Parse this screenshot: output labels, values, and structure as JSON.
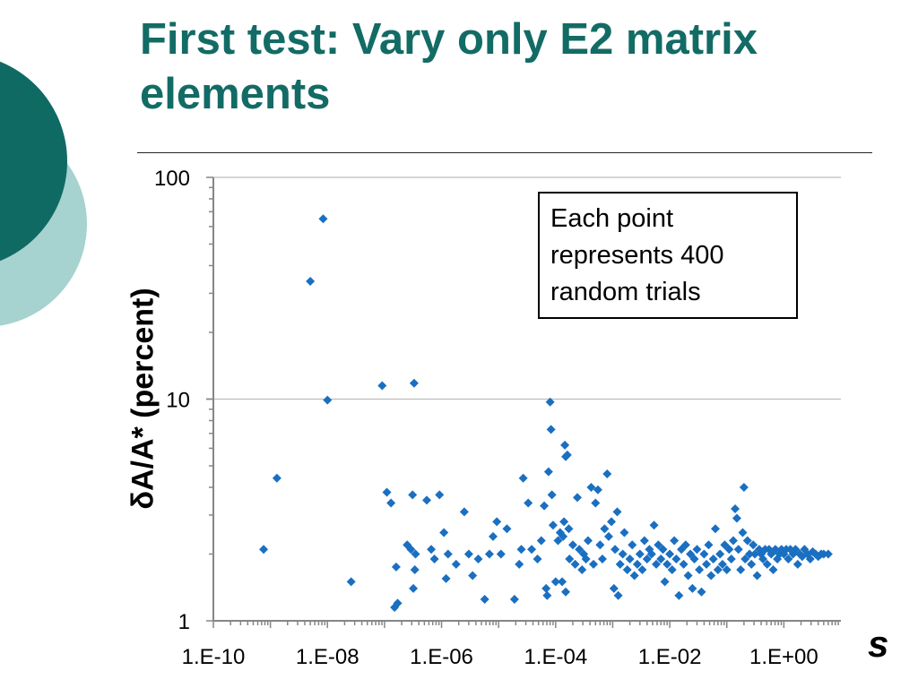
{
  "slide": {
    "title": "First test: Vary only E2 matrix elements",
    "colors": {
      "title": "#136b65",
      "circle_dark": "#0f6a64",
      "circle_light": "#a6d2d0",
      "marker": "#1a6fc1"
    }
  },
  "note": {
    "lines": [
      "Each point",
      "represents 400",
      "random trials"
    ]
  },
  "chart_data": {
    "type": "scatter",
    "title": "",
    "xlabel": "s",
    "ylabel": "δA/A* (percent)",
    "x_scale": "log",
    "y_scale": "log",
    "xlim": [
      1e-10,
      10.0
    ],
    "ylim": [
      1,
      100
    ],
    "x_ticks": [
      1e-10,
      1e-08,
      1e-06,
      0.0001,
      0.01,
      1
    ],
    "x_tick_labels": [
      "1.E-10",
      "1.E-08",
      "1.E-06",
      "1.E-04",
      "1.E-02",
      "1.E+00"
    ],
    "y_ticks": [
      1,
      10,
      100
    ],
    "y_tick_labels": [
      "1",
      "10",
      "100"
    ],
    "grid": "horizontal major",
    "marker": "diamond",
    "series": [
      {
        "points": [
          [
            7.6e-10,
            2.1
          ],
          [
            1.3e-09,
            4.4
          ],
          [
            5e-09,
            34
          ],
          [
            8.4e-09,
            65
          ],
          [
            1e-08,
            9.9
          ],
          [
            2.6e-08,
            1.5
          ],
          [
            9.1e-08,
            11.5
          ],
          [
            1.1e-07,
            3.8
          ],
          [
            1.3e-07,
            3.4
          ],
          [
            1.5e-07,
            1.15
          ],
          [
            1.6e-07,
            1.75
          ],
          [
            1.7e-07,
            1.2
          ],
          [
            2.5e-07,
            2.2
          ],
          [
            2.9e-07,
            2.1
          ],
          [
            3.1e-07,
            3.7
          ],
          [
            3.3e-07,
            11.8
          ],
          [
            3.4e-07,
            1.7
          ],
          [
            3.5e-07,
            2.0
          ],
          [
            3.2e-07,
            1.4
          ],
          [
            5.5e-07,
            3.5
          ],
          [
            6.6e-07,
            2.1
          ],
          [
            7.5e-07,
            1.9
          ],
          [
            9.2e-07,
            3.7
          ],
          [
            1.1e-06,
            2.5
          ],
          [
            1.2e-06,
            1.55
          ],
          [
            1.3e-06,
            2.0
          ],
          [
            1.8e-06,
            1.8
          ],
          [
            2.5e-06,
            3.1
          ],
          [
            3e-06,
            2.0
          ],
          [
            3.5e-06,
            1.6
          ],
          [
            4.4e-06,
            1.9
          ],
          [
            5.7e-06,
            1.25
          ],
          [
            6.9e-06,
            2.0
          ],
          [
            8e-06,
            2.4
          ],
          [
            9.3e-06,
            2.8
          ],
          [
            1.1e-05,
            2.0
          ],
          [
            1.4e-05,
            2.6
          ],
          [
            1.9e-05,
            1.25
          ],
          [
            2.3e-05,
            1.8
          ],
          [
            2.5e-05,
            2.1
          ],
          [
            2.7e-05,
            4.4
          ],
          [
            3.3e-05,
            3.4
          ],
          [
            3.8e-05,
            2.1
          ],
          [
            4.8e-05,
            1.9
          ],
          [
            5.6e-05,
            2.3
          ],
          [
            6.3e-05,
            3.3
          ],
          [
            6.8e-05,
            1.4
          ],
          [
            7.1e-05,
            1.3
          ],
          [
            7.5e-05,
            4.7
          ],
          [
            8e-05,
            9.7
          ],
          [
            8.3e-05,
            7.3
          ],
          [
            8.6e-05,
            3.7
          ],
          [
            9e-05,
            2.7
          ],
          [
            0.0001,
            1.5
          ],
          [
            0.00011,
            2.3
          ],
          [
            0.00012,
            2.5
          ],
          [
            0.00013,
            1.5
          ],
          [
            0.000135,
            2.4
          ],
          [
            0.000145,
            6.2
          ],
          [
            0.00015,
            5.5
          ],
          [
            0.00016,
            5.6
          ],
          [
            0.00017,
            2.6
          ],
          [
            0.00015,
            1.35
          ],
          [
            0.00014,
            2.8
          ],
          [
            0.000175,
            1.9
          ],
          [
            0.0002,
            2.2
          ],
          [
            0.00022,
            1.8
          ],
          [
            0.00024,
            3.6
          ],
          [
            0.00026,
            2.1
          ],
          [
            0.00029,
            1.7
          ],
          [
            0.00031,
            2.0
          ],
          [
            0.00034,
            1.9
          ],
          [
            0.00037,
            2.3
          ],
          [
            0.00042,
            4.0
          ],
          [
            0.00046,
            1.8
          ],
          [
            0.0005,
            3.4
          ],
          [
            0.00055,
            3.9
          ],
          [
            0.0006,
            2.2
          ],
          [
            0.00066,
            1.9
          ],
          [
            0.00072,
            2.6
          ],
          [
            0.0008,
            4.6
          ],
          [
            0.00085,
            2.4
          ],
          [
            0.00095,
            2.8
          ],
          [
            0.00105,
            1.4
          ],
          [
            0.0011,
            2.1
          ],
          [
            0.0012,
            3.1
          ],
          [
            0.00125,
            1.3
          ],
          [
            0.00135,
            1.8
          ],
          [
            0.0015,
            2.0
          ],
          [
            0.0016,
            2.5
          ],
          [
            0.0018,
            1.7
          ],
          [
            0.002,
            1.9
          ],
          [
            0.0022,
            2.2
          ],
          [
            0.0024,
            1.6
          ],
          [
            0.0027,
            1.8
          ],
          [
            0.003,
            2.0
          ],
          [
            0.0033,
            1.7
          ],
          [
            0.0036,
            2.3
          ],
          [
            0.004,
            1.9
          ],
          [
            0.0044,
            2.1
          ],
          [
            0.0048,
            2.0
          ],
          [
            0.0053,
            2.7
          ],
          [
            0.0058,
            1.8
          ],
          [
            0.0063,
            2.2
          ],
          [
            0.007,
            1.9
          ],
          [
            0.0076,
            2.1
          ],
          [
            0.0082,
            1.5
          ],
          [
            0.009,
            1.8
          ],
          [
            0.01,
            2.0
          ],
          [
            0.011,
            1.7
          ],
          [
            0.012,
            2.3
          ],
          [
            0.013,
            1.9
          ],
          [
            0.0145,
            1.3
          ],
          [
            0.016,
            2.1
          ],
          [
            0.0175,
            1.8
          ],
          [
            0.019,
            2.2
          ],
          [
            0.021,
            1.6
          ],
          [
            0.023,
            2.0
          ],
          [
            0.025,
            1.4
          ],
          [
            0.027,
            1.9
          ],
          [
            0.03,
            2.1
          ],
          [
            0.033,
            1.7
          ],
          [
            0.036,
            1.35
          ],
          [
            0.04,
            2.0
          ],
          [
            0.044,
            1.8
          ],
          [
            0.048,
            2.2
          ],
          [
            0.053,
            1.6
          ],
          [
            0.058,
            1.9
          ],
          [
            0.063,
            2.6
          ],
          [
            0.07,
            1.7
          ],
          [
            0.076,
            2.0
          ],
          [
            0.084,
            1.8
          ],
          [
            0.092,
            2.2
          ],
          [
            0.1,
            1.7
          ],
          [
            0.11,
            2.1
          ],
          [
            0.12,
            1.9
          ],
          [
            0.13,
            2.3
          ],
          [
            0.14,
            3.2
          ],
          [
            0.15,
            2.9
          ],
          [
            0.16,
            2.1
          ],
          [
            0.175,
            1.7
          ],
          [
            0.19,
            2.5
          ],
          [
            0.2,
            4.0
          ],
          [
            0.21,
            1.9
          ],
          [
            0.23,
            2.3
          ],
          [
            0.25,
            2.0
          ],
          [
            0.27,
            1.8
          ],
          [
            0.29,
            2.2
          ],
          [
            0.31,
            2.0
          ],
          [
            0.34,
            1.6
          ],
          [
            0.37,
            2.1
          ],
          [
            0.4,
            2.0
          ],
          [
            0.43,
            1.9
          ],
          [
            0.47,
            2.1
          ],
          [
            0.51,
            1.8
          ],
          [
            0.55,
            2.1
          ],
          [
            0.6,
            2.0
          ],
          [
            0.65,
            1.7
          ],
          [
            0.71,
            2.1
          ],
          [
            0.77,
            1.9
          ],
          [
            0.84,
            2.0
          ],
          [
            0.91,
            2.1
          ],
          [
            1.0,
            2.0
          ],
          [
            1.1,
            2.1
          ],
          [
            1.2,
            1.9
          ],
          [
            1.3,
            2.1
          ],
          [
            1.45,
            2.0
          ],
          [
            1.6,
            2.1
          ],
          [
            1.75,
            1.8
          ],
          [
            1.9,
            2.0
          ],
          [
            2.1,
            1.95
          ],
          [
            2.3,
            2.1
          ],
          [
            2.6,
            2.0
          ],
          [
            2.9,
            1.9
          ],
          [
            3.2,
            2.05
          ],
          [
            3.6,
            2.0
          ],
          [
            4.0,
            1.95
          ],
          [
            4.5,
            2.0
          ],
          [
            5.0,
            2.0
          ],
          [
            6.0,
            2.0
          ]
        ]
      }
    ]
  }
}
